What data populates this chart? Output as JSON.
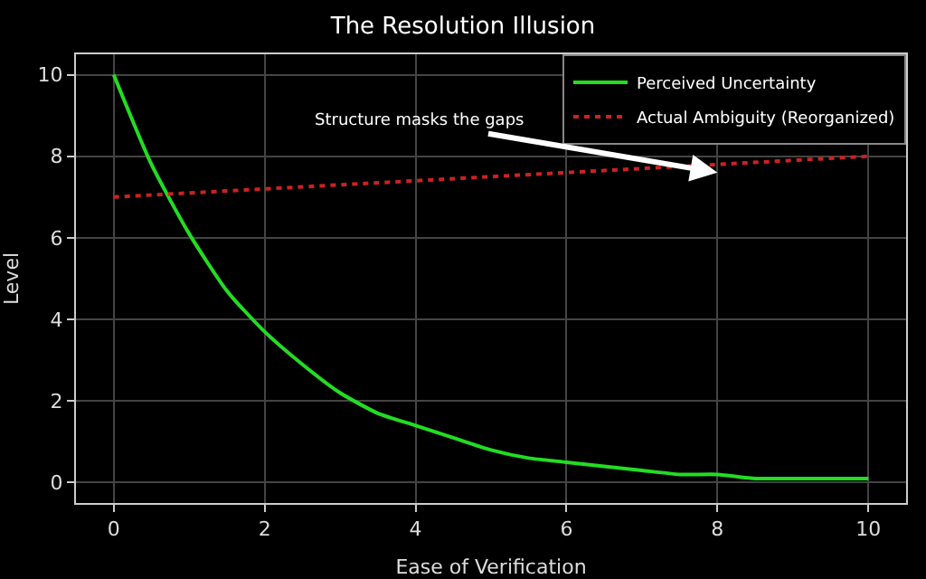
{
  "chart_data": {
    "type": "line",
    "title": "The Resolution Illusion",
    "xlabel": "Ease of Verification",
    "ylabel": "Level",
    "x": [
      0,
      0.5,
      1,
      1.5,
      2,
      2.5,
      3,
      3.5,
      4,
      4.5,
      5,
      5.5,
      6,
      6.5,
      7,
      7.5,
      8,
      8.5,
      9,
      9.5,
      10
    ],
    "series": [
      {
        "name": "Perceived Uncertainty",
        "color": "#22dd22",
        "line_style": "solid",
        "values": [
          10,
          7.8,
          6.1,
          4.7,
          3.7,
          2.9,
          2.2,
          1.7,
          1.4,
          1.1,
          0.8,
          0.6,
          0.5,
          0.4,
          0.3,
          0.2,
          0.2,
          0.1,
          0.1,
          0.1,
          0.1
        ]
      },
      {
        "name": "Actual Ambiguity (Reorganized)",
        "color": "#cc2222",
        "line_style": "dotted",
        "x": [
          0,
          10
        ],
        "values": [
          7,
          8
        ]
      }
    ],
    "annotations": [
      {
        "text": "Structure masks the gaps",
        "x": 8,
        "y": 7.6
      }
    ],
    "xlim": [
      -0.5,
      10.5
    ],
    "xticks": [
      0,
      2,
      4,
      6,
      8,
      10
    ],
    "ylim": [
      -0.5,
      10.5
    ],
    "yticks": [
      0,
      2,
      4,
      6,
      8,
      10
    ],
    "grid": true,
    "legend": "top right",
    "marker": "none"
  }
}
